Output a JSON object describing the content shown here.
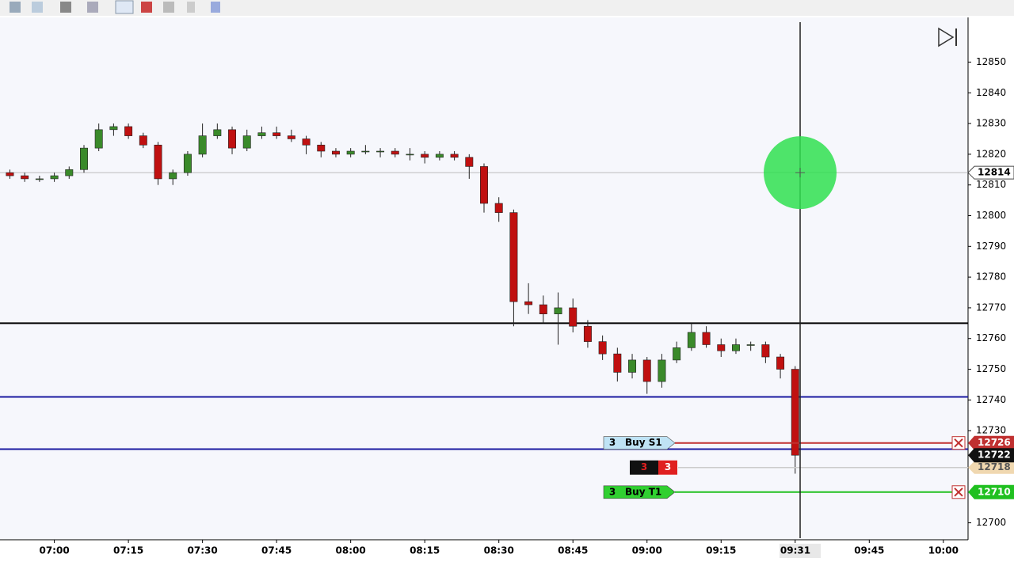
{
  "chart_data": {
    "type": "candlestick",
    "x": [
      "06:51",
      "06:54",
      "06:57",
      "07:00",
      "07:03",
      "07:06",
      "07:09",
      "07:12",
      "07:15",
      "07:18",
      "07:21",
      "07:24",
      "07:27",
      "07:30",
      "07:33",
      "07:36",
      "07:39",
      "07:42",
      "07:45",
      "07:48",
      "07:51",
      "07:54",
      "07:57",
      "08:00",
      "08:03",
      "08:06",
      "08:09",
      "08:12",
      "08:15",
      "08:18",
      "08:21",
      "08:24",
      "08:27",
      "08:30",
      "08:33",
      "08:36",
      "08:39",
      "08:42",
      "08:45",
      "08:48",
      "08:51",
      "08:54",
      "08:57",
      "09:00",
      "09:03",
      "09:06",
      "09:09",
      "09:12",
      "09:15",
      "09:18",
      "09:21",
      "09:24",
      "09:27",
      "09:30"
    ],
    "ohlc": [
      [
        12814,
        12815,
        12812,
        12813
      ],
      [
        12813,
        12814,
        12811,
        12812
      ],
      [
        12812,
        12813,
        12811,
        12812
      ],
      [
        12812,
        12814,
        12811,
        12813
      ],
      [
        12813,
        12816,
        12812,
        12815
      ],
      [
        12815,
        12823,
        12814,
        12822
      ],
      [
        12822,
        12830,
        12821,
        12828
      ],
      [
        12828,
        12830,
        12826,
        12829
      ],
      [
        12829,
        12830,
        12825,
        12826
      ],
      [
        12826,
        12827,
        12822,
        12823
      ],
      [
        12823,
        12824,
        12810,
        12812
      ],
      [
        12812,
        12815,
        12810,
        12814
      ],
      [
        12814,
        12821,
        12813,
        12820
      ],
      [
        12820,
        12830,
        12819,
        12826
      ],
      [
        12826,
        12830,
        12825,
        12828
      ],
      [
        12828,
        12829,
        12820,
        12822
      ],
      [
        12822,
        12828,
        12821,
        12826
      ],
      [
        12826,
        12829,
        12825,
        12827
      ],
      [
        12827,
        12829,
        12825,
        12826
      ],
      [
        12826,
        12828,
        12824,
        12825
      ],
      [
        12825,
        12826,
        12820,
        12823
      ],
      [
        12823,
        12824,
        12819,
        12821
      ],
      [
        12821,
        12822,
        12819,
        12820
      ],
      [
        12820,
        12822,
        12819,
        12821
      ],
      [
        12821,
        12823,
        12820,
        12821
      ],
      [
        12821,
        12822,
        12819,
        12821
      ],
      [
        12821,
        12822,
        12819,
        12820
      ],
      [
        12820,
        12822,
        12818,
        12820
      ],
      [
        12820,
        12821,
        12817,
        12819
      ],
      [
        12819,
        12821,
        12818,
        12820
      ],
      [
        12820,
        12821,
        12818,
        12819
      ],
      [
        12819,
        12820,
        12812,
        12816
      ],
      [
        12816,
        12817,
        12801,
        12804
      ],
      [
        12804,
        12806,
        12798,
        12801
      ],
      [
        12801,
        12802,
        12764,
        12772
      ],
      [
        12772,
        12778,
        12768,
        12771
      ],
      [
        12771,
        12774,
        12765,
        12768
      ],
      [
        12768,
        12775,
        12758,
        12770
      ],
      [
        12770,
        12773,
        12762,
        12764
      ],
      [
        12764,
        12766,
        12757,
        12759
      ],
      [
        12759,
        12761,
        12753,
        12755
      ],
      [
        12755,
        12757,
        12746,
        12749
      ],
      [
        12749,
        12755,
        12747,
        12753
      ],
      [
        12753,
        12754,
        12742,
        12746
      ],
      [
        12746,
        12755,
        12744,
        12753
      ],
      [
        12753,
        12759,
        12752,
        12757
      ],
      [
        12757,
        12765,
        12756,
        12762
      ],
      [
        12762,
        12764,
        12757,
        12758
      ],
      [
        12758,
        12760,
        12754,
        12756
      ],
      [
        12756,
        12760,
        12755,
        12758
      ],
      [
        12758,
        12759,
        12756,
        12758
      ],
      [
        12758,
        12759,
        12752,
        12754
      ],
      [
        12754,
        12755,
        12747,
        12750
      ],
      [
        12750,
        12751,
        12716,
        12722
      ]
    ],
    "up_color": "#3a8a2a",
    "down_color": "#c01010",
    "xlim": [
      "06:49",
      "10:05"
    ],
    "xticks": [
      "07:00",
      "07:15",
      "07:30",
      "07:45",
      "08:00",
      "08:15",
      "08:30",
      "08:45",
      "09:00",
      "09:15",
      "09:30",
      "09:45",
      "10:00"
    ],
    "ylim": [
      12695,
      12863
    ],
    "yticks": [
      12700,
      12730,
      12740,
      12750,
      12760,
      12770,
      12780,
      12790,
      12800,
      12810,
      12820,
      12830,
      12840,
      12850
    ],
    "hlines": [
      {
        "value": 12765,
        "color": "#000000"
      },
      {
        "value": 12741,
        "color": "#1a1aa0"
      },
      {
        "value": 12724,
        "color": "#1a1aa0"
      }
    ],
    "orders": [
      {
        "qty": 3,
        "label": "Buy S1",
        "price": 12726,
        "color": "#c03030",
        "tag_color": "#bfe3f5"
      },
      {
        "qty": 3,
        "label": "Buy T1",
        "price": 12710,
        "color": "#20c020",
        "tag_color": "#30d030"
      }
    ],
    "position": {
      "qty": 3,
      "filled": 3,
      "price": 12718
    },
    "crosshair": {
      "x": "09:31",
      "price": 12814
    }
  }
}
